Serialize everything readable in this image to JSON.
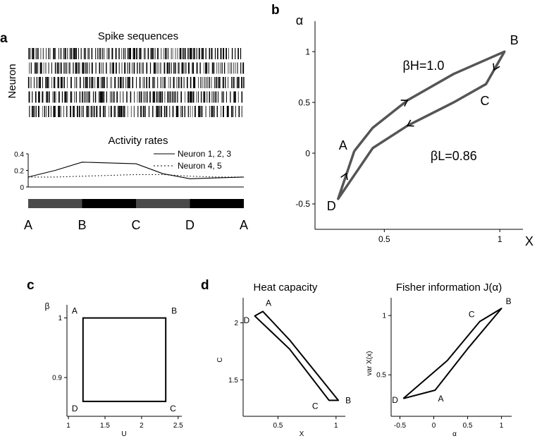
{
  "panel_labels": {
    "a": "a",
    "b": "b",
    "c": "c",
    "d": "d"
  },
  "chart_data": [
    {
      "id": "a_spikes",
      "type": "raster",
      "title": "Spike sequences",
      "ylabel": "Neuron",
      "rows": 5
    },
    {
      "id": "a_rates",
      "type": "line",
      "title": "Activity rates",
      "ylim": [
        0,
        0.4
      ],
      "yticks": [
        "0",
        "0.2",
        "0.4"
      ],
      "x": [
        0,
        0.5,
        1,
        1.5,
        2,
        2.5,
        3,
        3.5,
        4
      ],
      "series": [
        {
          "name": "Neuron 1, 2, 3",
          "style": "solid",
          "values": [
            0.12,
            0.2,
            0.3,
            0.29,
            0.28,
            0.16,
            0.1,
            0.11,
            0.12
          ]
        },
        {
          "name": "Neuron 4, 5",
          "style": "dotted",
          "values": [
            0.12,
            0.12,
            0.13,
            0.14,
            0.15,
            0.15,
            0.13,
            0.12,
            0.12
          ]
        }
      ],
      "states": [
        {
          "from": "A",
          "to": "B",
          "color": "#4a4a4a"
        },
        {
          "from": "B",
          "to": "C",
          "color": "#000000"
        },
        {
          "from": "C",
          "to": "D",
          "color": "#4a4a4a"
        },
        {
          "from": "D",
          "to": "A",
          "color": "#000000"
        }
      ],
      "state_labels": [
        "A",
        "B",
        "C",
        "D",
        "A"
      ]
    },
    {
      "id": "b",
      "type": "line",
      "xlabel": "X",
      "ylabel": "α",
      "xlim": [
        0.2,
        1.1
      ],
      "ylim": [
        -0.75,
        1.3
      ],
      "xticks": [
        0.5,
        1
      ],
      "xtick_labels": [
        "0.5",
        "1"
      ],
      "yticks": [
        -0.5,
        0,
        0.5,
        1
      ],
      "ytick_labels": [
        "-0.5",
        "0",
        "0.5",
        "1"
      ],
      "color": "#555555",
      "upper_curve": [
        [
          0.37,
          0.02
        ],
        [
          0.45,
          0.25
        ],
        [
          0.6,
          0.52
        ],
        [
          0.8,
          0.78
        ],
        [
          1.02,
          1.0
        ]
      ],
      "lower_curve": [
        [
          0.3,
          -0.45
        ],
        [
          0.45,
          0.05
        ],
        [
          0.6,
          0.27
        ],
        [
          0.8,
          0.5
        ],
        [
          0.94,
          0.68
        ]
      ],
      "points": [
        {
          "label": "A",
          "x": 0.37,
          "y": 0.02
        },
        {
          "label": "B",
          "x": 1.02,
          "y": 1.0
        },
        {
          "label": "C",
          "x": 0.94,
          "y": 0.68
        },
        {
          "label": "D",
          "x": 0.3,
          "y": -0.45
        }
      ],
      "annotations": [
        {
          "text": "βH=1.0",
          "x": 0.58,
          "y": 0.82
        },
        {
          "text": "βL=0.86",
          "x": 0.7,
          "y": -0.07
        }
      ]
    },
    {
      "id": "c",
      "type": "line",
      "xlabel": "U",
      "ylabel": "β",
      "xlim": [
        0.98,
        2.55
      ],
      "ylim": [
        0.835,
        1.022
      ],
      "xticks": [
        1,
        1.5,
        2,
        2.5
      ],
      "xtick_labels": [
        "1",
        "1.5",
        "2",
        "2.5"
      ],
      "yticks": [
        0.9,
        1
      ],
      "ytick_labels": [
        "0.9",
        "1"
      ],
      "cycle": [
        [
          1.2,
          1.0
        ],
        [
          2.33,
          1.0
        ],
        [
          2.33,
          0.86
        ],
        [
          1.2,
          0.86
        ]
      ],
      "points": [
        {
          "label": "A",
          "x": 1.2,
          "y": 1.0
        },
        {
          "label": "B",
          "x": 2.33,
          "y": 1.0
        },
        {
          "label": "C",
          "x": 2.33,
          "y": 0.86
        },
        {
          "label": "D",
          "x": 1.2,
          "y": 0.86
        }
      ]
    },
    {
      "id": "d_heat",
      "type": "line",
      "title": "Heat capacity",
      "xlabel": "X",
      "ylabel": "C",
      "xlim": [
        0.2,
        1.08
      ],
      "ylim": [
        1.18,
        2.22
      ],
      "xticks": [
        0.5,
        1
      ],
      "xtick_labels": [
        "0.5",
        "1"
      ],
      "yticks": [
        1.5,
        2
      ],
      "ytick_labels": [
        "1.5",
        "2"
      ],
      "cycle": [
        [
          0.37,
          2.1
        ],
        [
          0.6,
          1.85
        ],
        [
          1.02,
          1.32
        ],
        [
          0.94,
          1.32
        ],
        [
          0.6,
          1.77
        ],
        [
          0.3,
          2.06
        ]
      ],
      "points": [
        {
          "label": "A",
          "x": 0.37,
          "y": 2.1
        },
        {
          "label": "B",
          "x": 1.02,
          "y": 1.32
        },
        {
          "label": "C",
          "x": 0.94,
          "y": 1.32
        },
        {
          "label": "D",
          "x": 0.3,
          "y": 2.06
        }
      ]
    },
    {
      "id": "d_fisher",
      "type": "line",
      "title": "Fisher information J(α)",
      "xlabel": "α",
      "ylabel": "var X(x)",
      "xlim": [
        -0.63,
        1.15
      ],
      "ylim": [
        0.15,
        1.15
      ],
      "xticks": [
        -0.5,
        0,
        0.5,
        1
      ],
      "xtick_labels": [
        "-0.5",
        "0",
        "0.5",
        "1"
      ],
      "yticks": [
        0.5,
        1
      ],
      "ytick_labels": [
        "0.5",
        "1"
      ],
      "cycle": [
        [
          -0.45,
          0.3
        ],
        [
          0.02,
          0.37
        ],
        [
          0.5,
          0.72
        ],
        [
          1.0,
          1.06
        ],
        [
          0.68,
          0.95
        ],
        [
          0.2,
          0.62
        ],
        [
          -0.45,
          0.3
        ]
      ],
      "points": [
        {
          "label": "A",
          "x": 0.02,
          "y": 0.37
        },
        {
          "label": "B",
          "x": 1.0,
          "y": 1.06
        },
        {
          "label": "C",
          "x": 0.68,
          "y": 0.95
        },
        {
          "label": "D",
          "x": -0.45,
          "y": 0.3
        }
      ]
    }
  ]
}
